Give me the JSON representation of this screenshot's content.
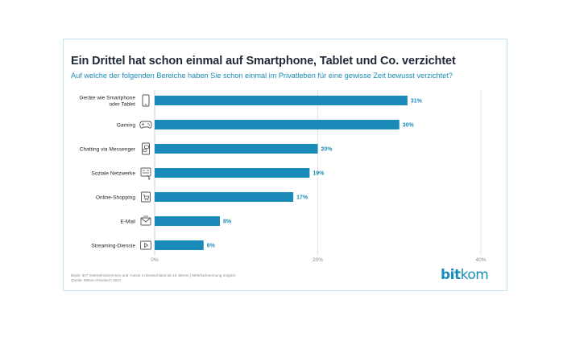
{
  "title": "Ein Drittel hat schon einmal auf Smartphone, Tablet und Co. verzichtet",
  "subtitle": "Auf welche der folgenden Bereiche haben Sie schon einmal im Privatleben für eine gewisse Zeit bewusst verzichtet?",
  "notes": {
    "line1": "Basis: 807 Internetnutzerinnen und -nutzer in Deutschland ab 16 Jahren | Mehrfachnennung möglich",
    "line2": "Quelle: Bitkom Research 2021"
  },
  "logo": {
    "bold": "bit",
    "regular": "kom"
  },
  "colors": {
    "bar": "#1a8bb8",
    "label": "#1a8bb8",
    "title": "#1f2937",
    "icon": "#555555"
  },
  "chart_data": {
    "type": "bar",
    "orientation": "horizontal",
    "categories": [
      [
        "Geräte wie Smartphone",
        "oder Tablet"
      ],
      [
        "Gaming"
      ],
      [
        "Chatting via Messenger"
      ],
      [
        "Soziale Netzwerke"
      ],
      [
        "Online-Shopping"
      ],
      [
        "E-Mail"
      ],
      [
        "Streaming-Dienste"
      ]
    ],
    "icons": [
      "smartphone-icon",
      "gamepad-icon",
      "messenger-icon",
      "social-network-icon",
      "shopping-cart-icon",
      "email-icon",
      "streaming-icon"
    ],
    "values": [
      31,
      30,
      20,
      19,
      17,
      8,
      6
    ],
    "value_labels": [
      "31%",
      "30%",
      "20%",
      "19%",
      "17%",
      "8%",
      "6%"
    ],
    "xlim": [
      0,
      40
    ],
    "ticks": [
      0,
      20,
      40
    ],
    "tick_labels": [
      "0%",
      "20%",
      "40%"
    ],
    "grid": true
  }
}
